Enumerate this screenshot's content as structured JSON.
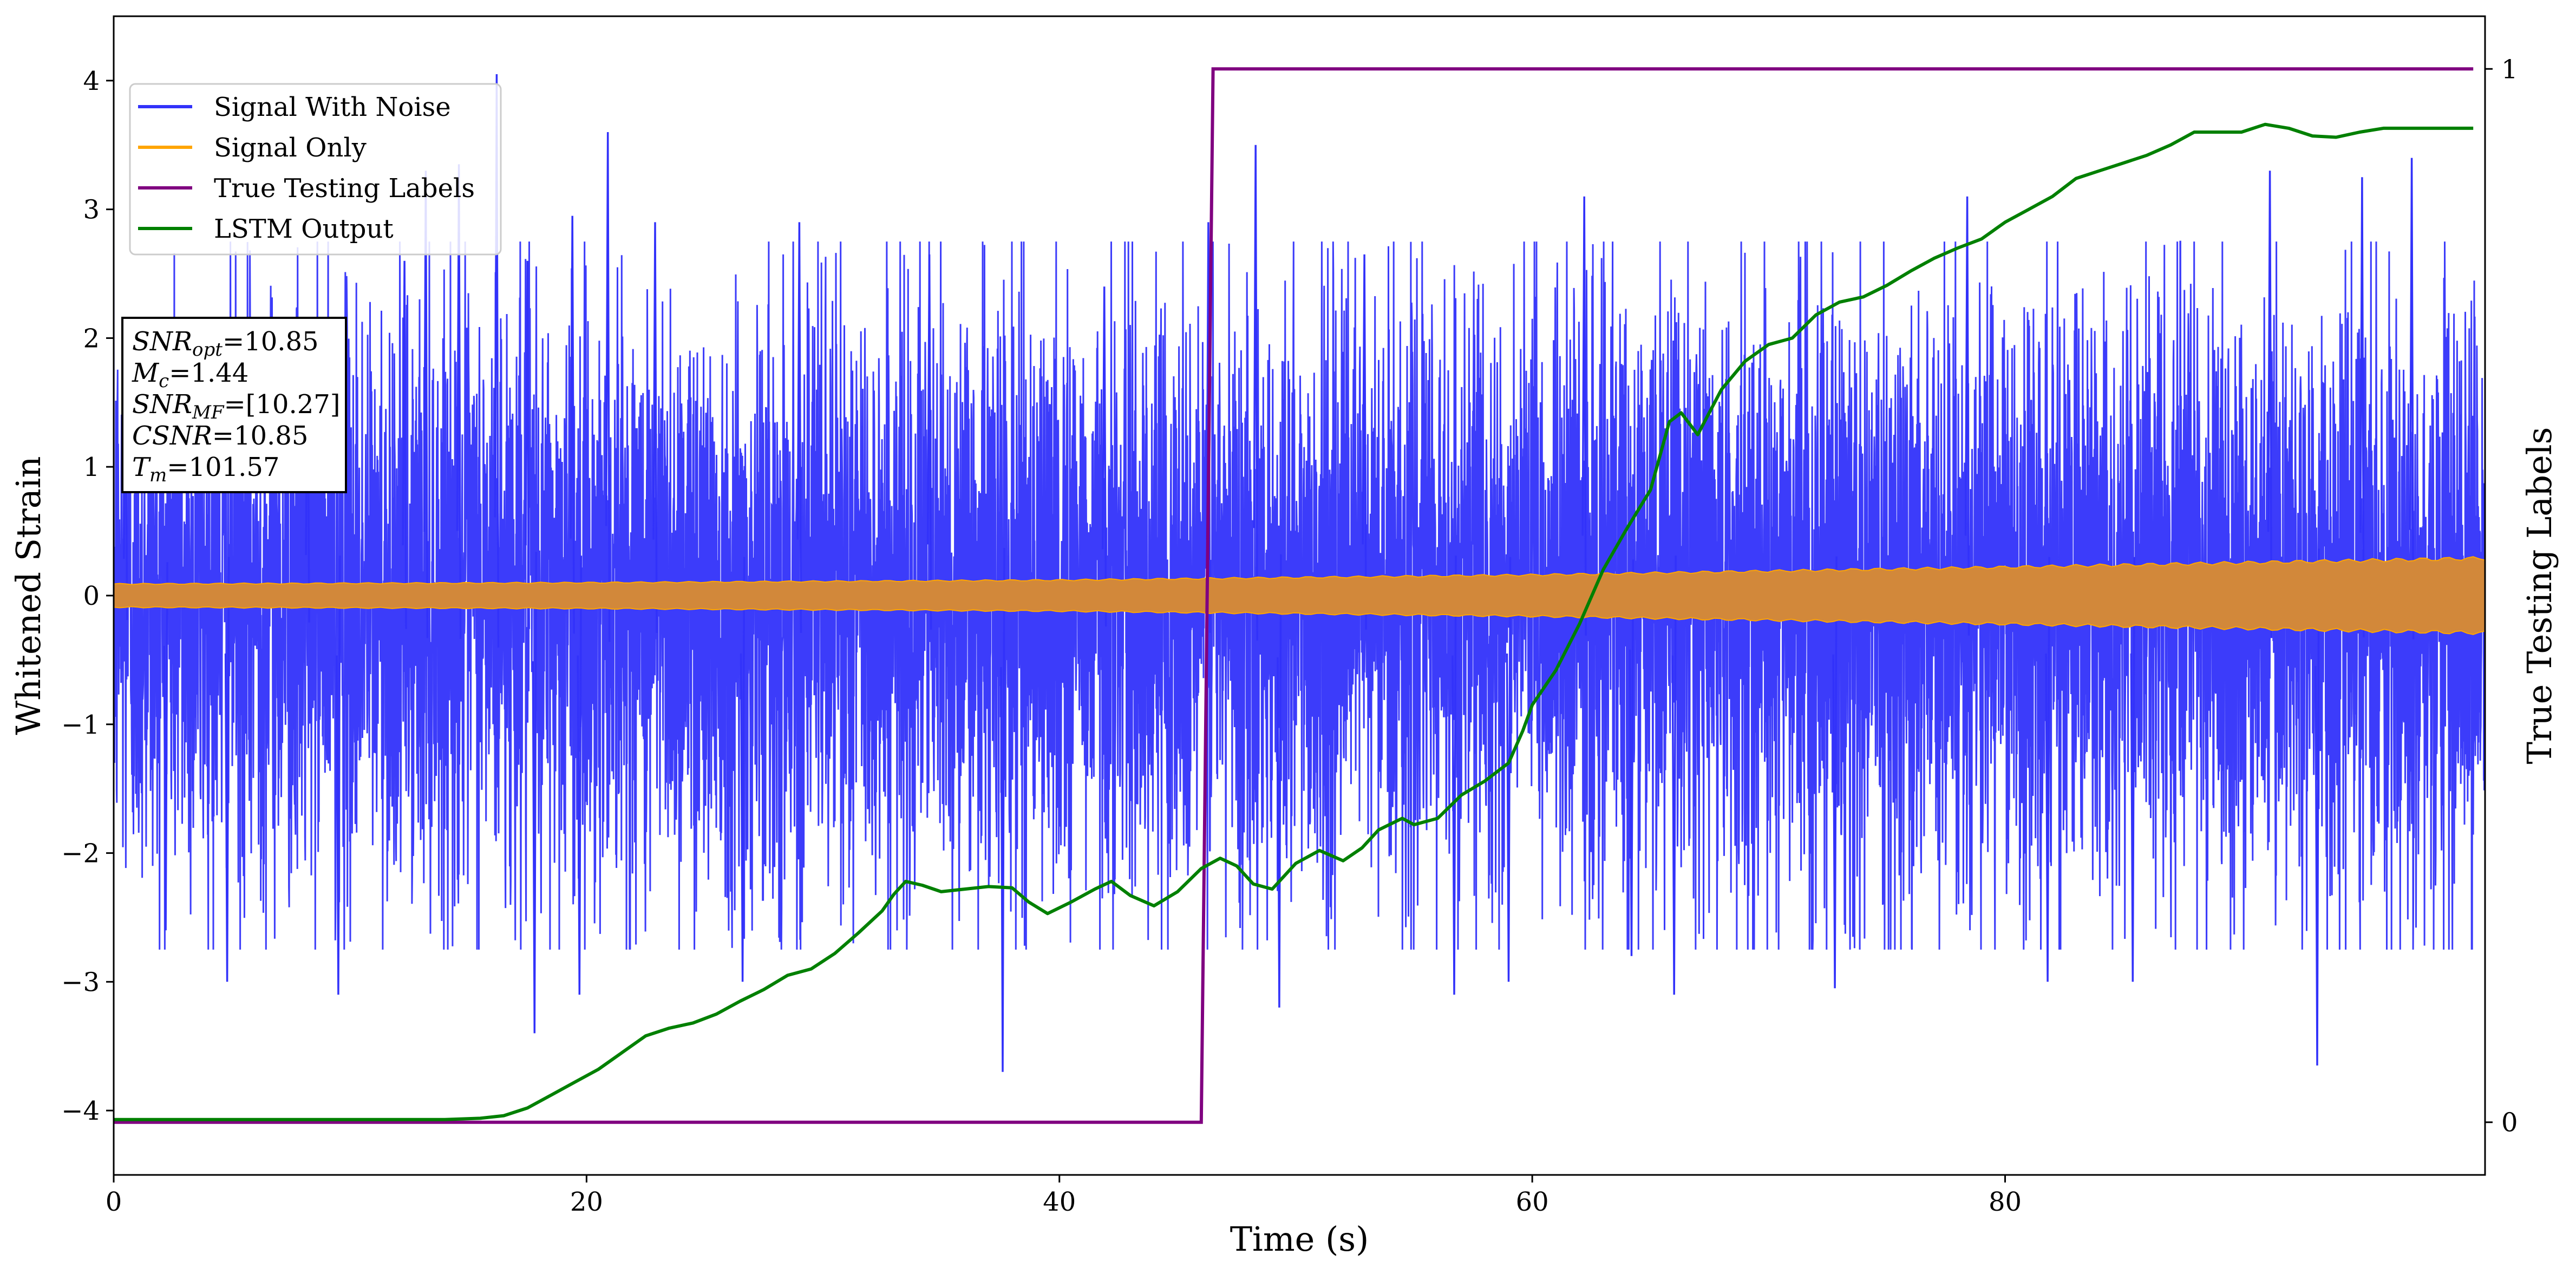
{
  "chart_data": {
    "type": "line",
    "xlabel": "Time (s)",
    "ylabel": "Whitened Strain",
    "y2label": "True Testing Labels",
    "xlim": [
      0,
      100.3
    ],
    "ylim": [
      -4.5,
      4.5
    ],
    "y2lim": [
      -0.05,
      1.05
    ],
    "xticks": [
      0,
      20,
      40,
      60,
      80
    ],
    "yticks": [
      -4,
      -3,
      -2,
      -1,
      0,
      1,
      2,
      3,
      4
    ],
    "yticklabels": [
      "−4",
      "−3",
      "−2",
      "−1",
      "0",
      "1",
      "2",
      "3",
      "4"
    ],
    "y2ticks": [
      0,
      1
    ],
    "grid": false,
    "legend_position": "top-left",
    "series": [
      {
        "name": "Signal With Noise",
        "axis": "left",
        "color": "#3232fa",
        "kind": "noise",
        "envelope": {
          "low": -3.7,
          "high": 4.05,
          "typical_amplitude": 1.15
        },
        "spikes": [
          {
            "x": 0.5,
            "y": 1.9
          },
          {
            "x": 2.2,
            "y": -2.6
          },
          {
            "x": 4.8,
            "y": -3.0
          },
          {
            "x": 8.2,
            "y": 2.1
          },
          {
            "x": 9.5,
            "y": -3.1
          },
          {
            "x": 12.3,
            "y": 2.6
          },
          {
            "x": 13.2,
            "y": 3.3
          },
          {
            "x": 14.6,
            "y": 3.35
          },
          {
            "x": 16.2,
            "y": 4.05
          },
          {
            "x": 17.5,
            "y": 2.6
          },
          {
            "x": 17.8,
            "y": -3.4
          },
          {
            "x": 19.4,
            "y": 2.95
          },
          {
            "x": 19.7,
            "y": -3.1
          },
          {
            "x": 20.9,
            "y": 3.6
          },
          {
            "x": 22.9,
            "y": 2.9
          },
          {
            "x": 26.6,
            "y": -3.0
          },
          {
            "x": 29.0,
            "y": 2.9
          },
          {
            "x": 34.5,
            "y": 2.65
          },
          {
            "x": 37.6,
            "y": -3.7
          },
          {
            "x": 41.9,
            "y": 2.4
          },
          {
            "x": 46.3,
            "y": 2.9
          },
          {
            "x": 48.3,
            "y": 3.5
          },
          {
            "x": 49.3,
            "y": -3.2
          },
          {
            "x": 52.9,
            "y": 2.65
          },
          {
            "x": 56.7,
            "y": -3.1
          },
          {
            "x": 59.0,
            "y": -3.0
          },
          {
            "x": 62.2,
            "y": 3.1
          },
          {
            "x": 64.2,
            "y": -2.8
          },
          {
            "x": 66.0,
            "y": -3.1
          },
          {
            "x": 72.8,
            "y": -3.05
          },
          {
            "x": 78.4,
            "y": 3.1
          },
          {
            "x": 81.8,
            "y": -3.0
          },
          {
            "x": 85.4,
            "y": -3.0
          },
          {
            "x": 91.2,
            "y": 3.3
          },
          {
            "x": 93.2,
            "y": -3.65
          },
          {
            "x": 95.1,
            "y": 3.25
          },
          {
            "x": 97.2,
            "y": 3.4
          }
        ]
      },
      {
        "name": "Signal Only",
        "axis": "left",
        "color": "#ffa500",
        "kind": "chirp",
        "band_fill": "#d2883a",
        "amplitude": {
          "x": [
            0,
            20,
            40,
            60,
            80,
            100.3
          ],
          "y": [
            0.09,
            0.1,
            0.12,
            0.16,
            0.22,
            0.29
          ]
        }
      },
      {
        "name": "True Testing Labels",
        "axis": "right",
        "color": "#800080",
        "x": [
          0,
          46.0,
          46.5,
          99.8
        ],
        "y": [
          0,
          0,
          1,
          1
        ]
      },
      {
        "name": "LSTM Output",
        "axis": "left",
        "color": "#008000",
        "x": [
          0,
          5,
          10,
          14,
          15.5,
          16.5,
          17.5,
          18.5,
          19.5,
          20.5,
          21.5,
          22.5,
          23.5,
          24.5,
          25.5,
          26.5,
          27.5,
          28.5,
          29.5,
          30.5,
          31.5,
          32.5,
          33.0,
          33.5,
          34.2,
          35.0,
          36.0,
          37.0,
          38.0,
          38.7,
          39.5,
          40.5,
          41.5,
          42.2,
          43.0,
          44.0,
          45.0,
          46.0,
          46.8,
          47.5,
          48.2,
          49.0,
          50.0,
          51.0,
          52.0,
          52.8,
          53.5,
          54.5,
          55.0,
          56.0,
          57.0,
          58.0,
          59.0,
          59.6,
          60.0,
          61.0,
          62.0,
          63.0,
          64.0,
          65.0,
          65.8,
          66.3,
          67.0,
          68.0,
          69.0,
          70.0,
          71.0,
          72.0,
          73.0,
          74.0,
          75.0,
          76.0,
          77.0,
          78.0,
          79.0,
          80.0,
          81.0,
          82.0,
          83.0,
          84.0,
          85.0,
          86.0,
          87.0,
          88.0,
          89.0,
          90.0,
          91.0,
          92.0,
          93.0,
          94.0,
          95.0,
          96.0,
          97.0,
          98.0,
          99.8
        ],
        "y": [
          -4.07,
          -4.07,
          -4.07,
          -4.07,
          -4.06,
          -4.04,
          -3.98,
          -3.88,
          -3.78,
          -3.68,
          -3.55,
          -3.42,
          -3.36,
          -3.32,
          -3.25,
          -3.15,
          -3.06,
          -2.95,
          -2.9,
          -2.78,
          -2.62,
          -2.45,
          -2.32,
          -2.22,
          -2.25,
          -2.3,
          -2.28,
          -2.26,
          -2.27,
          -2.38,
          -2.47,
          -2.38,
          -2.28,
          -2.22,
          -2.33,
          -2.41,
          -2.3,
          -2.12,
          -2.04,
          -2.1,
          -2.24,
          -2.28,
          -2.08,
          -1.98,
          -2.06,
          -1.96,
          -1.82,
          -1.73,
          -1.78,
          -1.73,
          -1.55,
          -1.44,
          -1.3,
          -1.05,
          -0.85,
          -0.58,
          -0.22,
          0.2,
          0.52,
          0.82,
          1.35,
          1.42,
          1.25,
          1.6,
          1.82,
          1.95,
          2.0,
          2.18,
          2.28,
          2.32,
          2.41,
          2.52,
          2.62,
          2.7,
          2.77,
          2.9,
          3.0,
          3.1,
          3.24,
          3.3,
          3.36,
          3.42,
          3.5,
          3.6,
          3.6,
          3.6,
          3.66,
          3.63,
          3.57,
          3.56,
          3.6,
          3.63,
          3.63,
          3.63,
          3.63
        ]
      }
    ],
    "annotation_lines": [
      {
        "var": "SNR",
        "sub": "opt",
        "value": "=10.85"
      },
      {
        "var": "M",
        "sub": "c",
        "value": "=1.44"
      },
      {
        "var": "SNR",
        "sub": "MF",
        "value": "=[10.27]"
      },
      {
        "var": "CSNR",
        "sub": "",
        "value": "=10.85"
      },
      {
        "var": "T",
        "sub": "m",
        "value": "=101.57"
      }
    ]
  }
}
